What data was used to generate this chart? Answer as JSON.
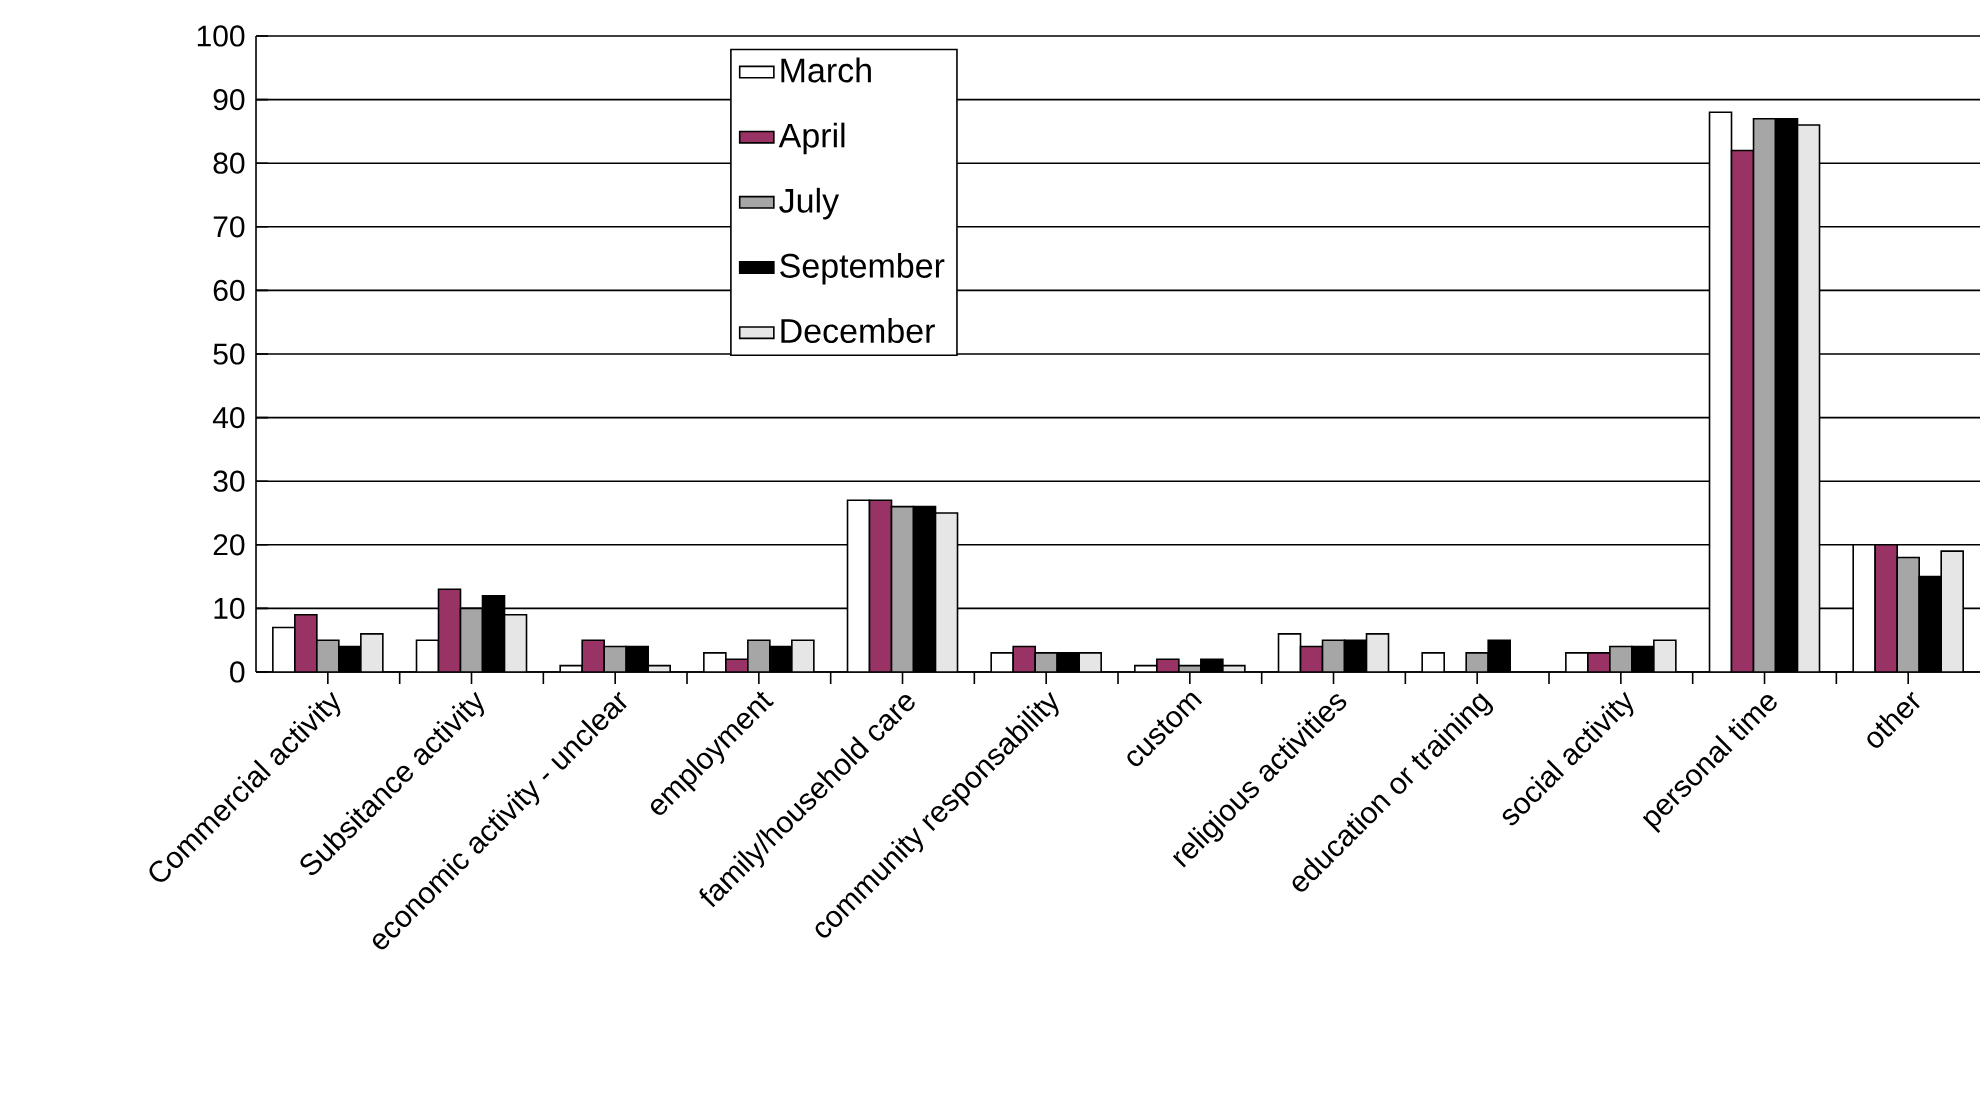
{
  "chart_data": {
    "type": "bar",
    "categories": [
      "Commercial activity",
      "Subsitance activity",
      "economic activity - unclear",
      "employment",
      "family/household care",
      "community responsability",
      "custom",
      "religious activities",
      "education or training",
      "social activity",
      "personal time",
      "other"
    ],
    "series": [
      {
        "name": "March",
        "color": "#ffffff",
        "values": [
          7,
          5,
          1,
          3,
          27,
          3,
          1,
          6,
          3,
          3,
          88,
          20
        ]
      },
      {
        "name": "April",
        "color": "#993366",
        "values": [
          9,
          13,
          5,
          2,
          27,
          4,
          2,
          4,
          null,
          3,
          82,
          20
        ]
      },
      {
        "name": "July",
        "color": "#a6a6a6",
        "values": [
          5,
          10,
          4,
          5,
          26,
          3,
          1,
          5,
          3,
          4,
          87,
          18
        ]
      },
      {
        "name": "September",
        "color": "#000000",
        "values": [
          4,
          12,
          4,
          4,
          26,
          3,
          2,
          5,
          5,
          4,
          87,
          15
        ]
      },
      {
        "name": "December",
        "color": "#e6e6e6",
        "values": [
          6,
          9,
          1,
          5,
          25,
          3,
          1,
          6,
          null,
          5,
          86,
          19
        ]
      }
    ],
    "ylim": [
      0,
      100
    ],
    "yticks": [
      0,
      10,
      20,
      30,
      40,
      50,
      60,
      70,
      80,
      90,
      100
    ],
    "grid": "y",
    "legend": "top"
  }
}
